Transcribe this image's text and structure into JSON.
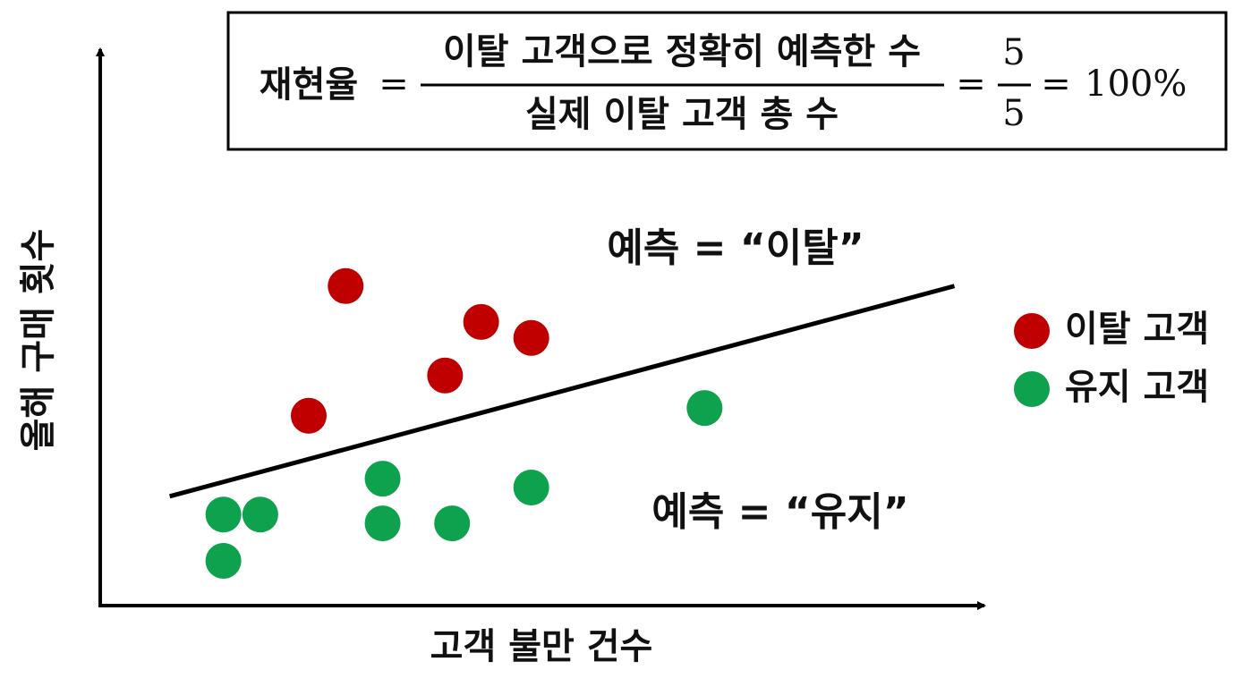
{
  "chart_data": {
    "type": "scatter",
    "formula": {
      "lhs": "재현율",
      "numerator": "이탈 고객으로 정확히 예측한 수",
      "denominator": "실제 이탈 고객 총 수",
      "value_numerator": 5,
      "value_denominator": 5,
      "result": {
        "value": 100,
        "label": "100%"
      }
    },
    "x_label": "고객 불만 건수",
    "y_label": "올해 구매 횟수",
    "annotations": [
      {
        "text": "예측 = “이탈”",
        "color": "#b50d0d"
      },
      {
        "text": "예측 = “유지”",
        "color": "#13a14b"
      }
    ],
    "xlim": [
      0,
      100
    ],
    "ylim": [
      0,
      100
    ],
    "series": [
      {
        "name": "이탈 고객",
        "color": "#c00000",
        "x": [
          27.9,
          43.3,
          49.0,
          39.2,
          23.7
        ],
        "values": [
          57.9,
          51.4,
          48.5,
          41.7,
          34.4
        ]
      },
      {
        "name": "유지 고객",
        "color": "#0fa24e",
        "x": [
          68.7,
          32.1,
          49.0,
          14.0,
          18.2,
          32.1,
          40.0,
          14.0
        ],
        "values": [
          35.8,
          23.0,
          21.4,
          16.5,
          16.5,
          14.9,
          14.9,
          8.1
        ]
      }
    ],
    "decision_line": {
      "color": "#000000",
      "x": [
        7.9,
        97.1
      ],
      "y": [
        19.8,
        57.9
      ]
    }
  }
}
